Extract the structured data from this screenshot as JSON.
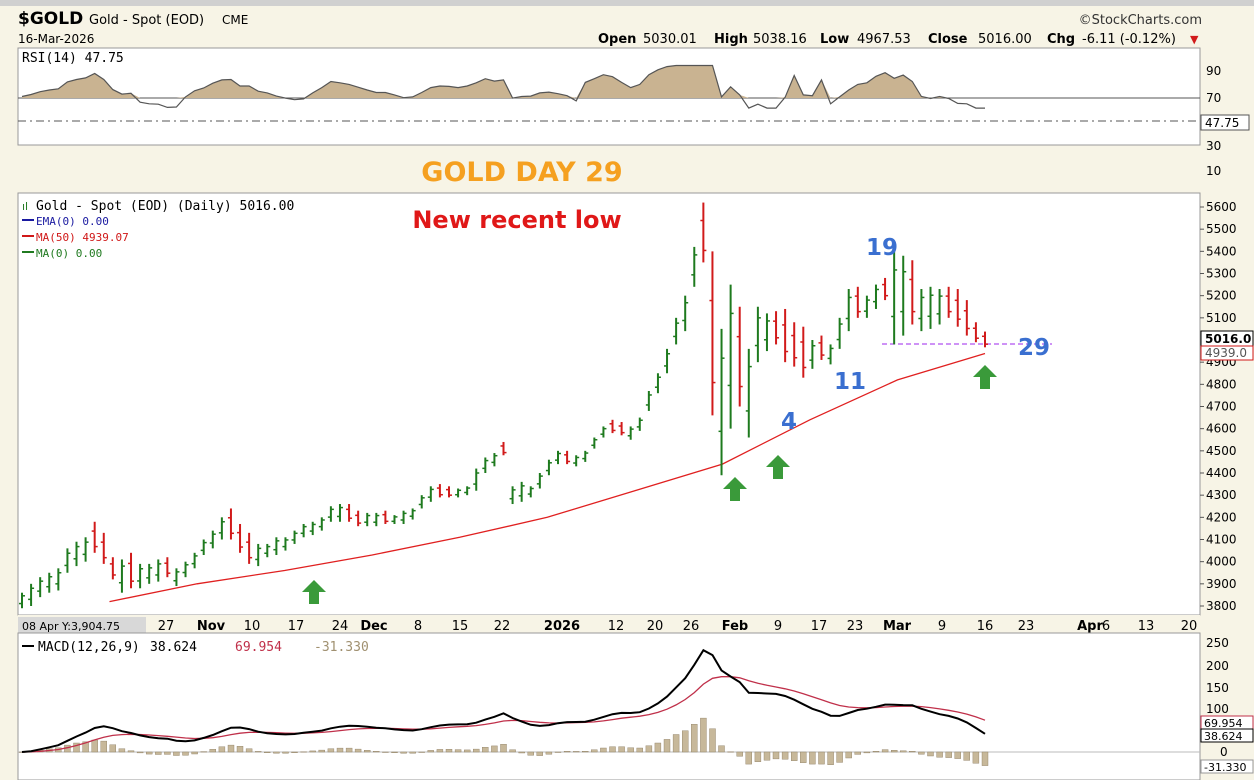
{
  "header": {
    "symbol": "$GOLD",
    "name": "Gold - Spot (EOD)",
    "exchange": "CME",
    "date": "16-Mar-2026",
    "brand": "©StockCharts.com",
    "ohlc": [
      {
        "label": "Open",
        "value": "5030.01"
      },
      {
        "label": "High",
        "value": "5038.16"
      },
      {
        "label": "Low",
        "value": "4967.53"
      },
      {
        "label": "Close",
        "value": "5016.00"
      },
      {
        "label": "Chg",
        "value": "-6.11 (-0.12%)"
      }
    ],
    "chg_arrow": "▼"
  },
  "rsi_panel": {
    "legend": "RSI(14) 47.75",
    "ticks": [
      "90",
      "70",
      "50",
      "30",
      "10"
    ],
    "current": "47.75"
  },
  "price_panel": {
    "legend": [
      {
        "text": "Gold - Spot (EOD) (Daily) 5016.00",
        "color": "#000000"
      },
      {
        "text": "EMA(0) 0.00",
        "color": "#1a1aa0"
      },
      {
        "text": "MA(50) 4939.07",
        "color": "#d01818"
      },
      {
        "text": "MA(0) 0.00",
        "color": "#207a20"
      }
    ],
    "ticks": [
      "5600",
      "5500",
      "5400",
      "5300",
      "5200",
      "5100",
      "5016.0",
      "4900",
      "4800",
      "4700",
      "4600",
      "4500",
      "4400",
      "4300",
      "4200",
      "4100",
      "4000",
      "3900",
      "3800"
    ],
    "close_label": "5016.0",
    "ma_label": "4939.0"
  },
  "annotations": {
    "title": "GOLD DAY 29",
    "subtitle": "New recent low",
    "numbers": [
      "19",
      "11",
      "4",
      "29"
    ]
  },
  "x_axis": {
    "cursor_readout": "08 Apr Y:3,904.75",
    "labels": [
      "27",
      "Nov",
      "10",
      "17",
      "24",
      "Dec",
      "8",
      "15",
      "22",
      "2026",
      "12",
      "20",
      "26",
      "Feb",
      "9",
      "17",
      "23",
      "Mar",
      "9",
      "16",
      "23",
      "Apr",
      "6",
      "13",
      "20"
    ]
  },
  "macd_panel": {
    "legend_name": "MACD(12,26,9)",
    "legend_v1": "38.624",
    "legend_v2": "69.954",
    "legend_v3": "-31.330",
    "ticks": [
      "250",
      "200",
      "150",
      "100",
      "50",
      "0"
    ],
    "labels": [
      "69.954",
      "38.624",
      "-31.330"
    ]
  },
  "colors": {
    "up": "#1e7a1e",
    "down": "#d11a1a",
    "ma50": "#e02020",
    "title_orange": "#f5a020",
    "subtitle_red": "#e01818",
    "count_blue": "#3a6fd0",
    "arrow_green": "#3a9a3a",
    "rsi_fill": "#c9b391",
    "hist": "#c7b89a"
  },
  "chart_data": [
    {
      "type": "ohlc",
      "title": "Gold - Spot (EOD) (Daily)",
      "ylim": [
        3750,
        5650
      ],
      "x": [
        "2025-10-13",
        "2025-10-14",
        "2025-10-15",
        "2025-10-16",
        "2025-10-17",
        "2025-10-20",
        "2025-10-21",
        "2025-10-22",
        "2025-10-23",
        "2025-10-24",
        "2025-10-27",
        "2025-10-28",
        "2025-10-29",
        "2025-10-30",
        "2025-10-31",
        "2025-11-03",
        "2025-11-04",
        "2025-11-05",
        "2025-11-06",
        "2025-11-07",
        "2025-11-10",
        "2025-11-11",
        "2025-11-12",
        "2025-11-13",
        "2025-11-14",
        "2025-11-17",
        "2025-11-18",
        "2025-11-19",
        "2025-11-20",
        "2025-11-21",
        "2025-11-24",
        "2025-11-25",
        "2025-11-26",
        "2025-11-27",
        "2025-11-28",
        "2025-12-01",
        "2025-12-02",
        "2025-12-03",
        "2025-12-04",
        "2025-12-05",
        "2025-12-08",
        "2025-12-09",
        "2025-12-10",
        "2025-12-11",
        "2025-12-12",
        "2025-12-15",
        "2025-12-16",
        "2025-12-17",
        "2025-12-18",
        "2025-12-19",
        "2025-12-22",
        "2025-12-23",
        "2025-12-24",
        "2025-12-26",
        "2025-12-29",
        "2025-12-30",
        "2025-12-31",
        "2026-01-02",
        "2026-01-05",
        "2026-01-06",
        "2026-01-07",
        "2026-01-08",
        "2026-01-09",
        "2026-01-12",
        "2026-01-13",
        "2026-01-14",
        "2026-01-15",
        "2026-01-16",
        "2026-01-20",
        "2026-01-21",
        "2026-01-22",
        "2026-01-23",
        "2026-01-26",
        "2026-01-27",
        "2026-01-28",
        "2026-01-29",
        "2026-01-30",
        "2026-02-02",
        "2026-02-03",
        "2026-02-04",
        "2026-02-05",
        "2026-02-06",
        "2026-02-09",
        "2026-02-10",
        "2026-02-11",
        "2026-02-12",
        "2026-02-13",
        "2026-02-17",
        "2026-02-18",
        "2026-02-19",
        "2026-02-20",
        "2026-02-23",
        "2026-02-24",
        "2026-02-25",
        "2026-02-26",
        "2026-02-27",
        "2026-03-02",
        "2026-03-03",
        "2026-03-04",
        "2026-03-05",
        "2026-03-06",
        "2026-03-09",
        "2026-03-10",
        "2026-03-11",
        "2026-03-12",
        "2026-03-13",
        "2026-03-16"
      ],
      "high": [
        3860,
        3900,
        3930,
        3950,
        3970,
        4060,
        4090,
        4110,
        4180,
        4130,
        4020,
        4010,
        4040,
        3990,
        3990,
        4010,
        4020,
        3970,
        4000,
        4040,
        4100,
        4140,
        4200,
        4240,
        4170,
        4130,
        4080,
        4080,
        4110,
        4110,
        4140,
        4170,
        4180,
        4200,
        4250,
        4260,
        4260,
        4230,
        4220,
        4220,
        4230,
        4210,
        4230,
        4240,
        4300,
        4340,
        4350,
        4340,
        4330,
        4340,
        4420,
        4470,
        4490,
        4540,
        4340,
        4360,
        4340,
        4400,
        4460,
        4500,
        4500,
        4480,
        4500,
        4560,
        4610,
        4640,
        4630,
        4610,
        4650,
        4770,
        4850,
        4960,
        5100,
        5200,
        5420,
        5620,
        5400,
        5050,
        5250,
        5150,
        4960,
        5150,
        5120,
        5130,
        5140,
        5080,
        5060,
        5000,
        5020,
        4980,
        5100,
        5230,
        5240,
        5200,
        5250,
        5280,
        5400,
        5380,
        5360,
        5230,
        5240,
        5230,
        5240,
        5230,
        5180,
        5080,
        5038
      ],
      "low": [
        3790,
        3800,
        3840,
        3860,
        3870,
        3950,
        3980,
        4000,
        4040,
        3990,
        3920,
        3860,
        3880,
        3880,
        3900,
        3910,
        3930,
        3890,
        3930,
        3970,
        4030,
        4060,
        4100,
        4100,
        4040,
        3990,
        3980,
        4020,
        4030,
        4050,
        4080,
        4110,
        4120,
        4140,
        4180,
        4180,
        4180,
        4160,
        4160,
        4160,
        4170,
        4170,
        4170,
        4190,
        4240,
        4270,
        4290,
        4290,
        4290,
        4300,
        4320,
        4400,
        4430,
        4480,
        4260,
        4270,
        4290,
        4330,
        4390,
        4440,
        4440,
        4430,
        4450,
        4510,
        4560,
        4580,
        4570,
        4550,
        4590,
        4680,
        4760,
        4850,
        4980,
        5040,
        5240,
        5350,
        4660,
        4390,
        4600,
        4700,
        4560,
        4900,
        4950,
        4980,
        4900,
        4880,
        4830,
        4870,
        4910,
        4890,
        4960,
        5040,
        5100,
        5100,
        5140,
        5180,
        4980,
        5020,
        5070,
        5040,
        5050,
        5070,
        5100,
        5060,
        5020,
        4990,
        4967
      ]
    },
    {
      "type": "line",
      "title": "MA(50)",
      "x": [
        "2025-10-13",
        "2025-10-27",
        "2025-11-10",
        "2025-11-24",
        "2025-12-08",
        "2025-12-22",
        "2026-01-05",
        "2026-01-19",
        "2026-02-02",
        "2026-02-16",
        "2026-03-02",
        "2026-03-16"
      ],
      "values": [
        3740,
        3820,
        3900,
        3960,
        4030,
        4110,
        4200,
        4320,
        4440,
        4640,
        4820,
        4939.07
      ]
    },
    {
      "type": "line",
      "title": "RSI(14)",
      "ylim": [
        0,
        100
      ],
      "current": 47.75
    },
    {
      "type": "line",
      "title": "MACD(12,26,9)",
      "series": [
        {
          "name": "MACD",
          "last": 38.624
        },
        {
          "name": "Signal",
          "last": 69.954
        },
        {
          "name": "Histogram",
          "last": -31.33
        }
      ],
      "ylim": [
        -40,
        260
      ]
    }
  ]
}
